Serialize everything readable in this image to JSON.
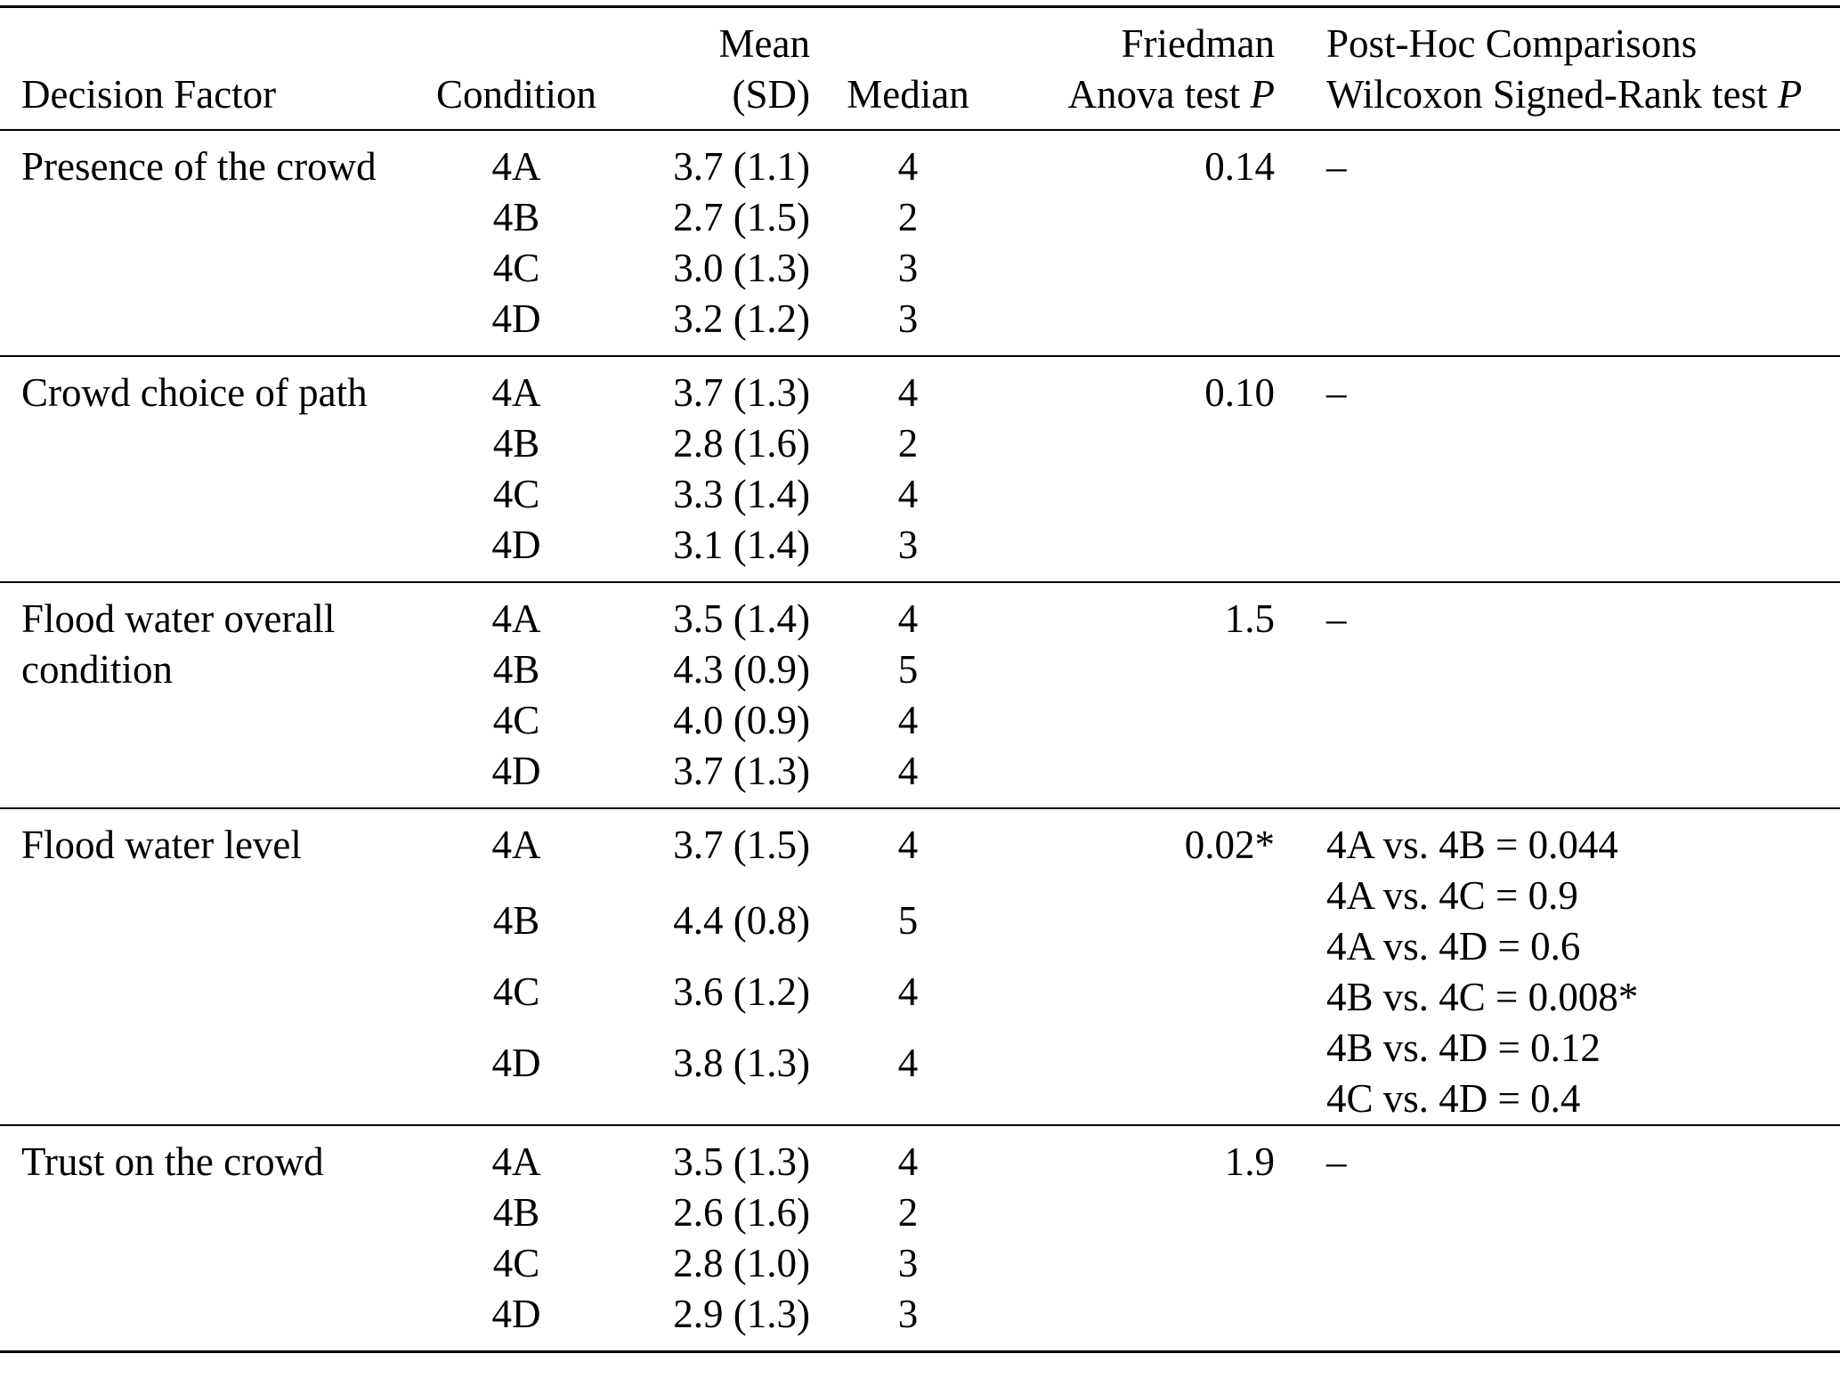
{
  "table": {
    "headers": {
      "factor_line1": "",
      "factor_line2": "Decision Factor",
      "condition_line1": "",
      "condition_line2": "Condition",
      "mean_line1": "Mean",
      "mean_line2": "(SD)",
      "median_line1": "",
      "median_line2": "Median",
      "friedman_line1": "Friedman",
      "friedman_line2": "Anova test ",
      "friedman_line2_italic": "P",
      "posthoc_line1": "Post-Hoc Comparisons",
      "posthoc_line2": "Wilcoxon Signed-Rank test ",
      "posthoc_line2_italic": "P"
    },
    "groups": [
      {
        "factor": "Presence of the crowd",
        "rows": [
          {
            "condition": "4A",
            "mean_sd": "3.7 (1.1)",
            "median": "4"
          },
          {
            "condition": "4B",
            "mean_sd": "2.7 (1.5)",
            "median": "2"
          },
          {
            "condition": "4C",
            "mean_sd": "3.0 (1.3)",
            "median": "3"
          },
          {
            "condition": "4D",
            "mean_sd": "3.2 (1.2)",
            "median": "3"
          }
        ],
        "friedman_p": "0.14",
        "posthoc": [
          "–"
        ]
      },
      {
        "factor": "Crowd choice of path",
        "rows": [
          {
            "condition": "4A",
            "mean_sd": "3.7 (1.3)",
            "median": "4"
          },
          {
            "condition": "4B",
            "mean_sd": "2.8 (1.6)",
            "median": "2"
          },
          {
            "condition": "4C",
            "mean_sd": "3.3 (1.4)",
            "median": "4"
          },
          {
            "condition": "4D",
            "mean_sd": "3.1 (1.4)",
            "median": "3"
          }
        ],
        "friedman_p": "0.10",
        "posthoc": [
          "–"
        ]
      },
      {
        "factor": "Flood water overall condition",
        "rows": [
          {
            "condition": "4A",
            "mean_sd": "3.5 (1.4)",
            "median": "4"
          },
          {
            "condition": "4B",
            "mean_sd": "4.3 (0.9)",
            "median": "5"
          },
          {
            "condition": "4C",
            "mean_sd": "4.0 (0.9)",
            "median": "4"
          },
          {
            "condition": "4D",
            "mean_sd": "3.7 (1.3)",
            "median": "4"
          }
        ],
        "friedman_p": "1.5",
        "posthoc": [
          "–"
        ]
      },
      {
        "factor": "Flood water level",
        "rows": [
          {
            "condition": "4A",
            "mean_sd": "3.7 (1.5)",
            "median": "4"
          },
          {
            "condition": "4B",
            "mean_sd": "4.4 (0.8)",
            "median": "5"
          },
          {
            "condition": "4C",
            "mean_sd": "3.6 (1.2)",
            "median": "4"
          },
          {
            "condition": "4D",
            "mean_sd": "3.8 (1.3)",
            "median": "4"
          }
        ],
        "friedman_p": "0.02*",
        "posthoc": [
          "4A vs. 4B = 0.044",
          "4A vs. 4C = 0.9",
          "4A vs. 4D = 0.6",
          "4B vs. 4C = 0.008*",
          "4B vs. 4D = 0.12",
          "4C vs. 4D = 0.4"
        ]
      },
      {
        "factor": "Trust on the crowd",
        "rows": [
          {
            "condition": "4A",
            "mean_sd": "3.5 (1.3)",
            "median": "4"
          },
          {
            "condition": "4B",
            "mean_sd": "2.6 (1.6)",
            "median": "2"
          },
          {
            "condition": "4C",
            "mean_sd": "2.8 (1.0)",
            "median": "3"
          },
          {
            "condition": "4D",
            "mean_sd": "2.9 (1.3)",
            "median": "3"
          }
        ],
        "friedman_p": "1.9",
        "posthoc": [
          "–"
        ]
      }
    ]
  }
}
